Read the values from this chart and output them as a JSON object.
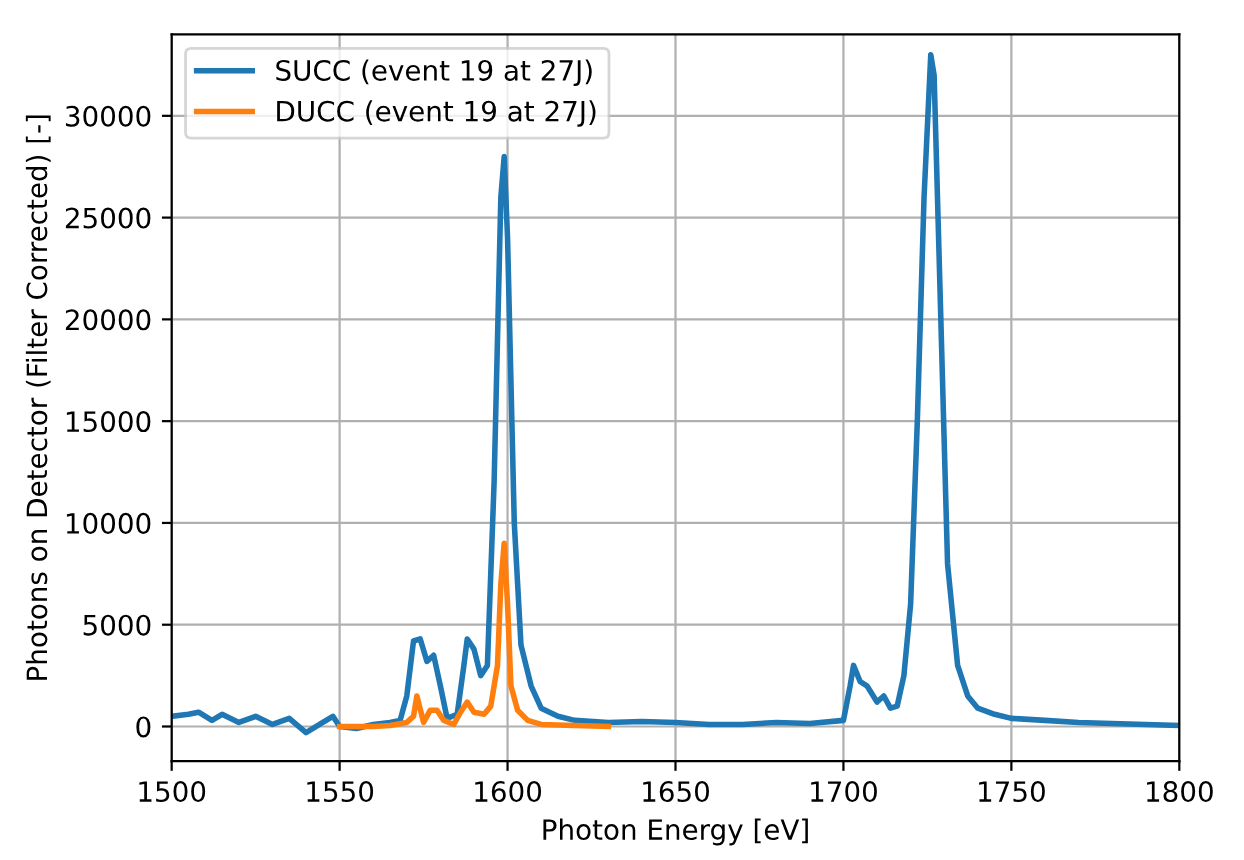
{
  "chart_data": {
    "type": "line",
    "xlabel": "Photon Energy [eV]",
    "ylabel": "Photons on Detector (Filter Corrected) [-]",
    "xlim": [
      1500,
      1800
    ],
    "xticks": [
      1500,
      1550,
      1600,
      1650,
      1700,
      1750,
      1800
    ],
    "ylim": [
      -1700,
      34000
    ],
    "yticks": [
      0,
      5000,
      10000,
      15000,
      20000,
      25000,
      30000
    ],
    "grid": true,
    "legend": "top left",
    "marker": "none",
    "line_style": "solid",
    "series": [
      {
        "name": "SUCC (event 19 at 27J)",
        "color": "#1f77b4",
        "x": [
          1500,
          1505,
          1508,
          1512,
          1515,
          1520,
          1525,
          1530,
          1535,
          1540,
          1545,
          1548,
          1550,
          1555,
          1560,
          1565,
          1568,
          1570,
          1572,
          1574,
          1576,
          1578,
          1580,
          1582,
          1585,
          1587,
          1588,
          1590,
          1592,
          1594,
          1596,
          1598,
          1599,
          1600,
          1602,
          1604,
          1607,
          1610,
          1615,
          1620,
          1630,
          1640,
          1650,
          1660,
          1670,
          1680,
          1690,
          1700,
          1702,
          1703,
          1705,
          1707,
          1710,
          1712,
          1714,
          1716,
          1718,
          1720,
          1722,
          1724,
          1726,
          1727,
          1729,
          1731,
          1734,
          1737,
          1740,
          1745,
          1750,
          1760,
          1770,
          1780,
          1790,
          1800
        ],
        "values": [
          500,
          600,
          700,
          300,
          600,
          200,
          500,
          100,
          400,
          -300,
          200,
          500,
          0,
          -100,
          100,
          200,
          300,
          1500,
          4200,
          4300,
          3200,
          3500,
          2000,
          400,
          600,
          3000,
          4300,
          3800,
          2500,
          3000,
          12000,
          26000,
          28000,
          24000,
          10000,
          4000,
          2000,
          900,
          500,
          300,
          200,
          250,
          200,
          100,
          100,
          200,
          150,
          300,
          2000,
          3000,
          2200,
          2000,
          1200,
          1500,
          900,
          1000,
          2500,
          6000,
          15000,
          26000,
          33000,
          32000,
          20000,
          8000,
          3000,
          1500,
          900,
          600,
          400,
          300,
          200,
          150,
          100,
          50
        ]
      },
      {
        "name": "DUCC (event 19 at 27J)",
        "color": "#ff7f0e",
        "x": [
          1550,
          1560,
          1565,
          1570,
          1572,
          1573,
          1575,
          1577,
          1579,
          1581,
          1584,
          1586,
          1588,
          1590,
          1593,
          1595,
          1597,
          1598,
          1599,
          1600,
          1601,
          1603,
          1606,
          1610,
          1620,
          1630
        ],
        "values": [
          0,
          0,
          50,
          200,
          500,
          1500,
          200,
          800,
          800,
          300,
          100,
          700,
          1200,
          700,
          600,
          1000,
          3000,
          7000,
          9000,
          6000,
          2000,
          800,
          300,
          100,
          50,
          0
        ]
      }
    ]
  }
}
